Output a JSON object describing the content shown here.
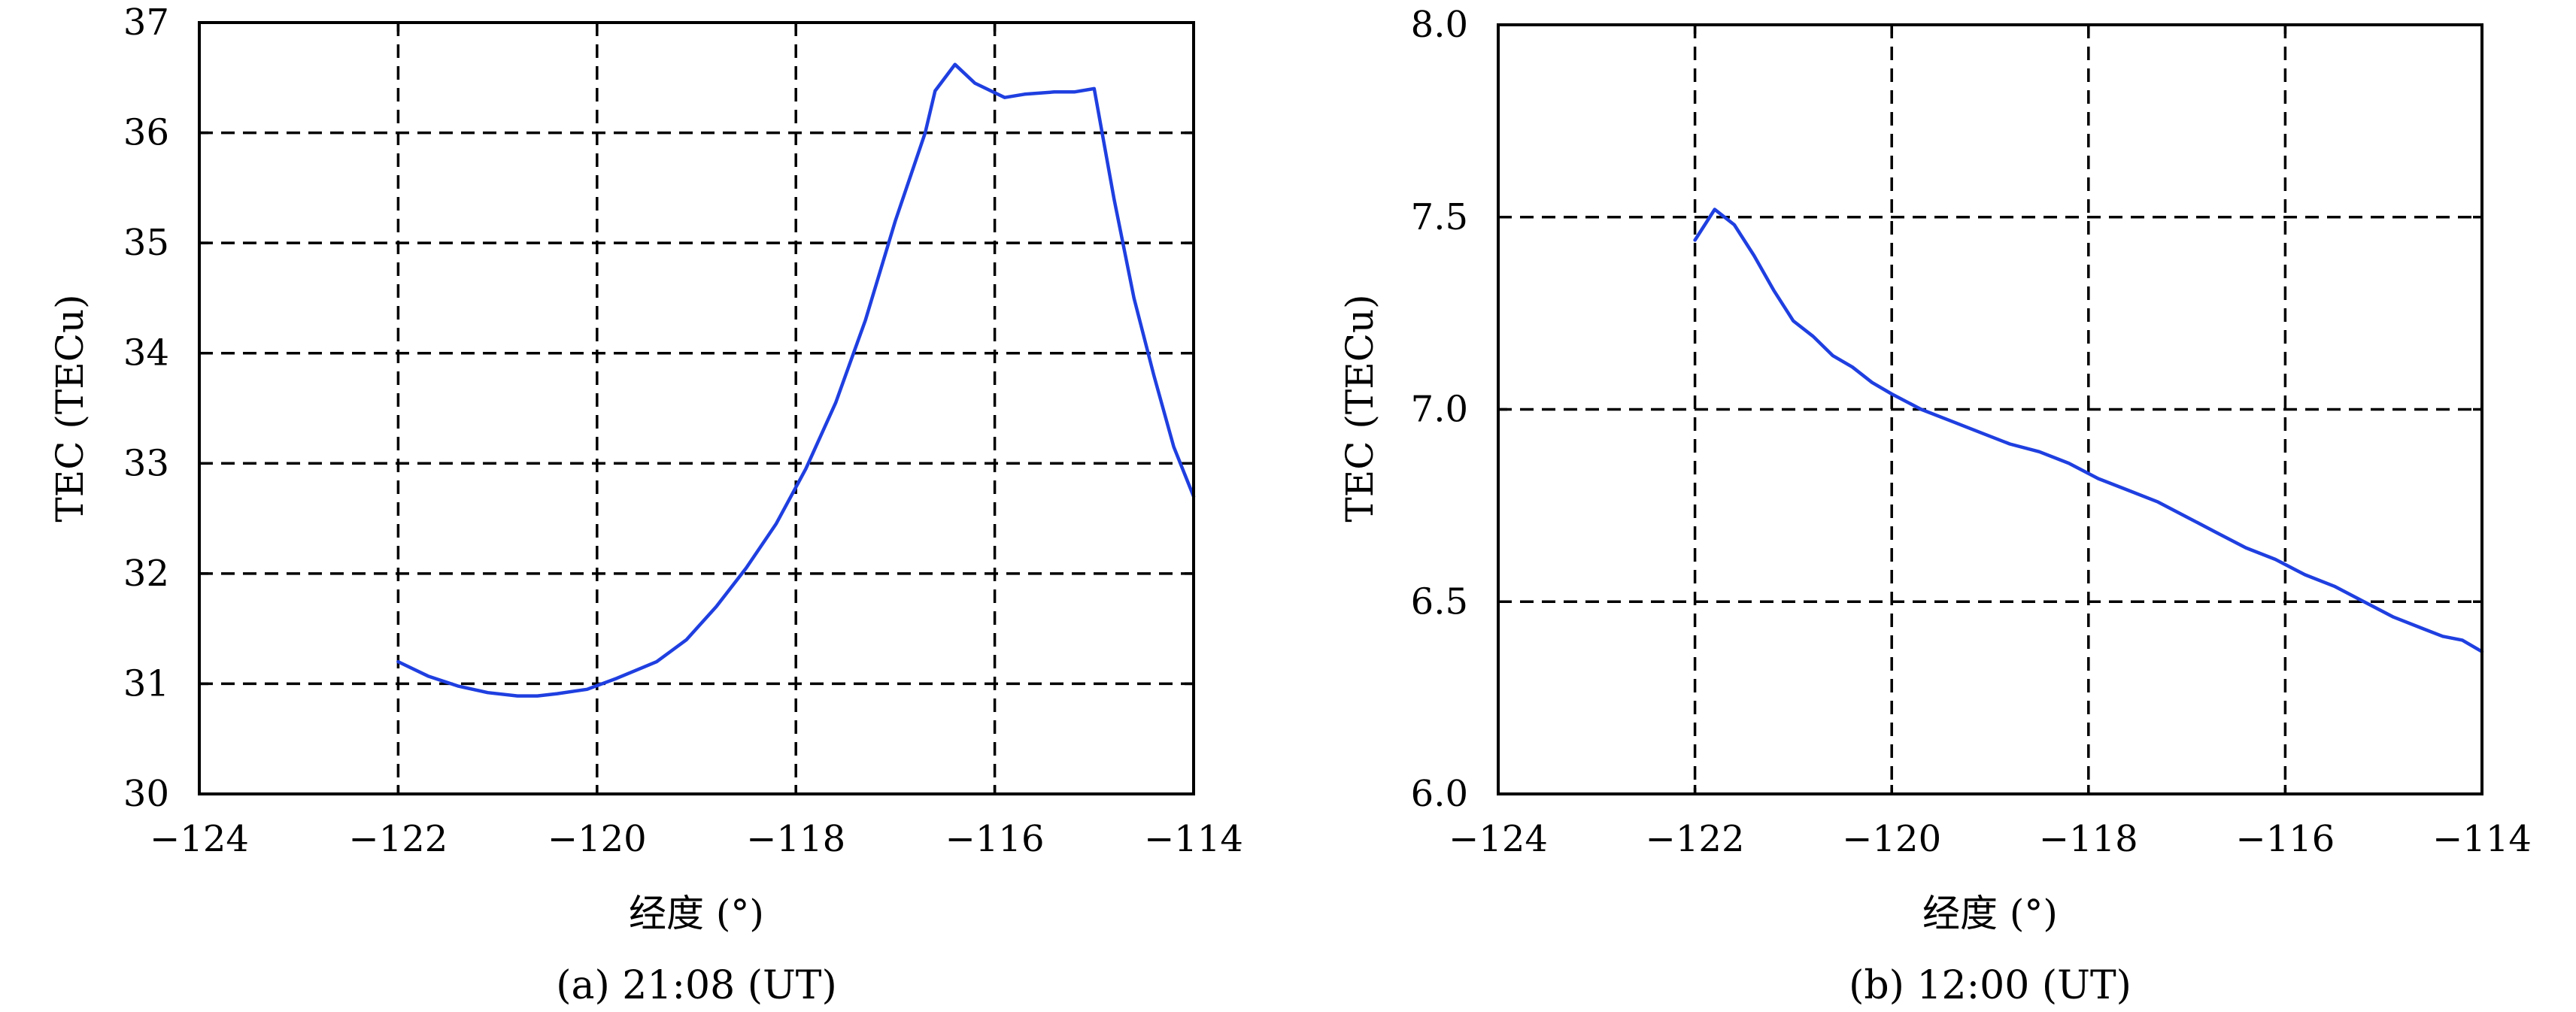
{
  "colors": {
    "series": "#1f3fe0",
    "axis": "#000000",
    "grid": "#000000"
  },
  "chart_data": [
    {
      "type": "line",
      "caption": "(a) 21:08 (UT)",
      "xlabel": "经度 (°)",
      "ylabel": "TEC (TECu)",
      "xlim": [
        -124,
        -114
      ],
      "ylim": [
        30,
        37
      ],
      "xticks": [
        -124,
        -122,
        -120,
        -118,
        -116,
        -114
      ],
      "yticks": [
        30,
        31,
        32,
        33,
        34,
        35,
        36,
        37
      ],
      "xtick_labels": [
        "−124",
        "−122",
        "−120",
        "−118",
        "−116",
        "−114"
      ],
      "ytick_labels": [
        "30",
        "31",
        "32",
        "33",
        "34",
        "35",
        "36",
        "37"
      ],
      "grid": true,
      "series": [
        {
          "x": [
            -122.0,
            -121.7,
            -121.4,
            -121.1,
            -120.8,
            -120.6,
            -120.4,
            -120.1,
            -119.8,
            -119.4,
            -119.1,
            -118.8,
            -118.5,
            -118.2,
            -117.9,
            -117.6,
            -117.3,
            -117.0,
            -116.7,
            -116.6,
            -116.4,
            -116.2,
            -115.9,
            -115.7,
            -115.4,
            -115.2,
            -115.0,
            -114.8,
            -114.6,
            -114.4,
            -114.2,
            -114.0
          ],
          "y": [
            31.2,
            31.07,
            30.98,
            30.92,
            30.89,
            30.89,
            30.91,
            30.95,
            31.05,
            31.2,
            31.4,
            31.7,
            32.05,
            32.45,
            32.95,
            33.55,
            34.3,
            35.2,
            36.0,
            36.38,
            36.62,
            36.45,
            36.32,
            36.35,
            36.37,
            36.37,
            36.4,
            35.4,
            34.5,
            33.8,
            33.15,
            32.7
          ]
        }
      ]
    },
    {
      "type": "line",
      "caption": "(b) 12:00 (UT)",
      "xlabel": "经度 (°)",
      "ylabel": "TEC (TECu)",
      "xlim": [
        -124,
        -114
      ],
      "ylim": [
        6.0,
        8.0
      ],
      "xticks": [
        -124,
        -122,
        -120,
        -118,
        -116,
        -114
      ],
      "yticks": [
        6.0,
        6.5,
        7.0,
        7.5,
        8.0
      ],
      "xtick_labels": [
        "−124",
        "−122",
        "−120",
        "−118",
        "−116",
        "−114"
      ],
      "ytick_labels": [
        "6.0",
        "6.5",
        "7.0",
        "7.5",
        "8.0"
      ],
      "grid": true,
      "series": [
        {
          "x": [
            -122.0,
            -121.8,
            -121.6,
            -121.4,
            -121.2,
            -121.0,
            -120.8,
            -120.6,
            -120.4,
            -120.2,
            -120.0,
            -119.7,
            -119.4,
            -119.1,
            -118.8,
            -118.5,
            -118.2,
            -117.9,
            -117.6,
            -117.3,
            -117.0,
            -116.7,
            -116.4,
            -116.1,
            -115.8,
            -115.5,
            -115.2,
            -114.9,
            -114.6,
            -114.4,
            -114.2,
            -114.0
          ],
          "y": [
            7.44,
            7.52,
            7.48,
            7.4,
            7.31,
            7.23,
            7.19,
            7.14,
            7.11,
            7.07,
            7.04,
            7.0,
            6.97,
            6.94,
            6.91,
            6.89,
            6.86,
            6.82,
            6.79,
            6.76,
            6.72,
            6.68,
            6.64,
            6.61,
            6.57,
            6.54,
            6.5,
            6.46,
            6.43,
            6.41,
            6.4,
            6.37
          ]
        }
      ]
    }
  ]
}
